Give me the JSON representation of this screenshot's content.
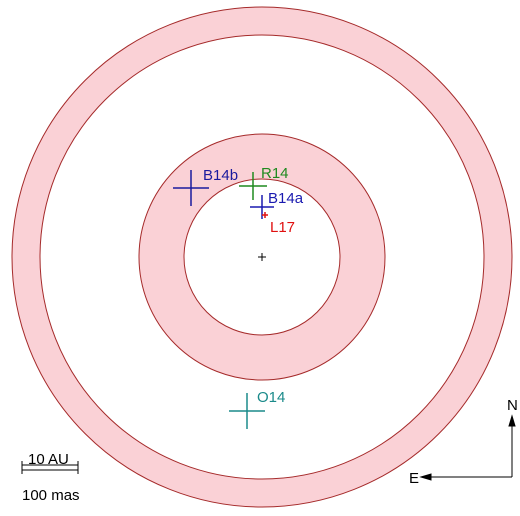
{
  "markers": [
    {
      "label": "B14b"
    },
    {
      "label": "R14"
    },
    {
      "label": "B14a"
    },
    {
      "label": "L17"
    },
    {
      "label": "O14"
    }
  ],
  "scale_bar": {
    "top": "10 AU",
    "bottom": "100 mas"
  },
  "compass": {
    "north": "N",
    "east": "E"
  }
}
